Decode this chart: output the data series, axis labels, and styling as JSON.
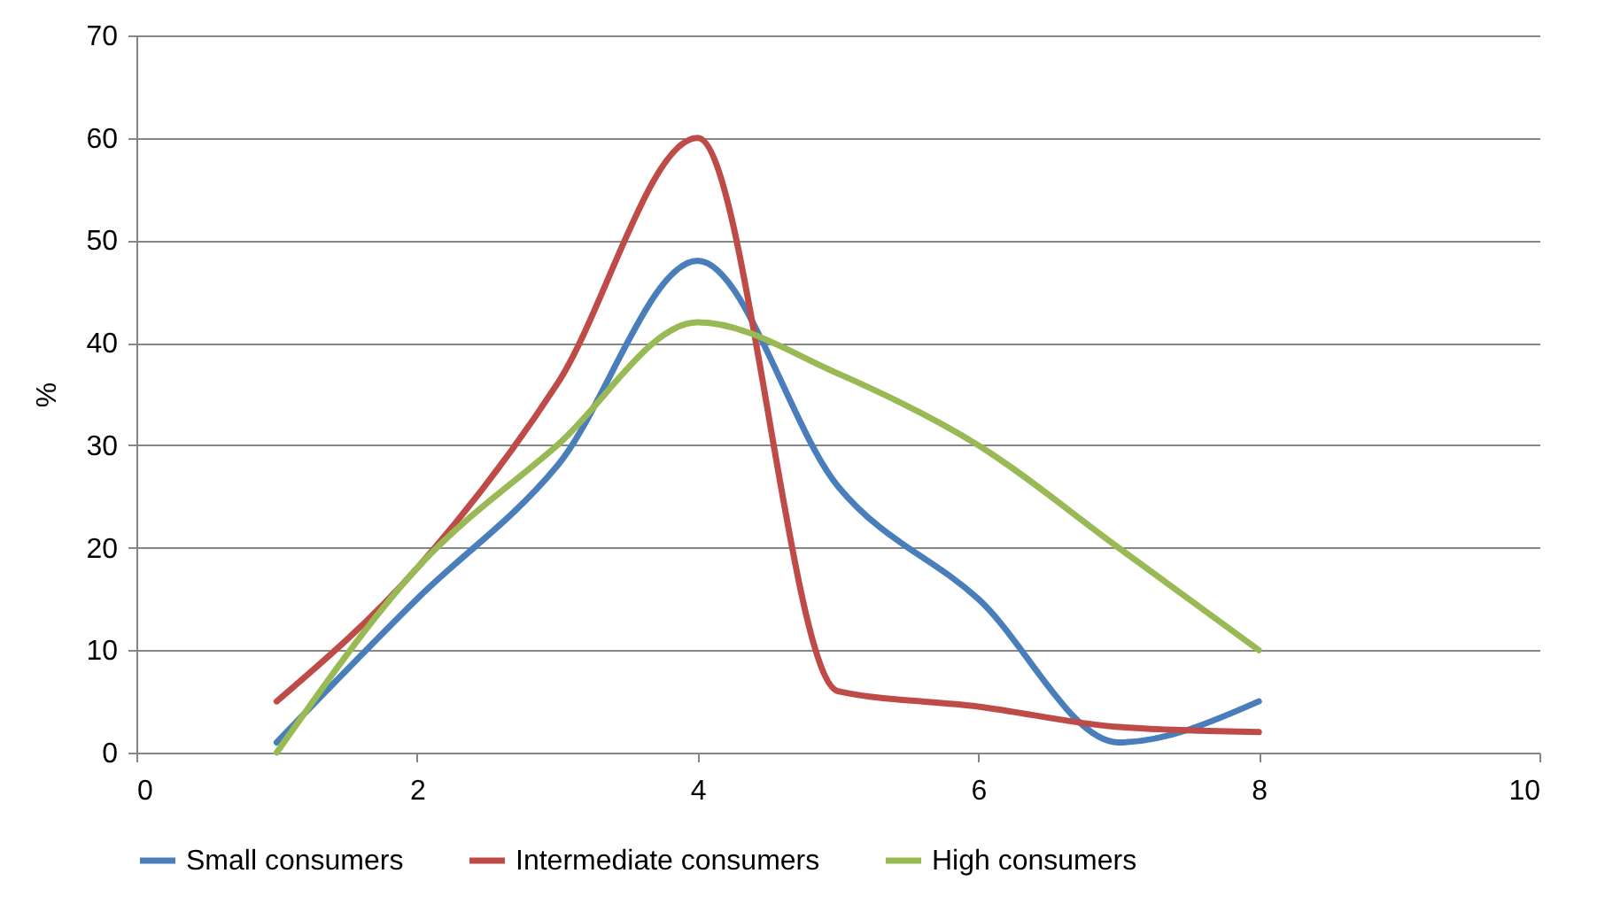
{
  "chart_data": {
    "type": "line",
    "ylabel": "%",
    "x": [
      1,
      2,
      3,
      4,
      5,
      6,
      7,
      8
    ],
    "series": [
      {
        "name": "Small consumers",
        "color": "#4a7ebb",
        "values": [
          1,
          15,
          28,
          48,
          26,
          15,
          1,
          5
        ]
      },
      {
        "name": "Intermediate consumers",
        "color": "#be4b48",
        "values": [
          5,
          18,
          36,
          60,
          6,
          4.5,
          2.5,
          2
        ]
      },
      {
        "name": "High consumers",
        "color": "#98b954",
        "values": [
          0,
          18,
          30,
          42,
          37,
          30,
          20,
          10
        ]
      }
    ],
    "xlim": [
      0,
      10
    ],
    "xticks": [
      0,
      2,
      4,
      6,
      8,
      10
    ],
    "ylim": [
      0,
      70
    ],
    "yticks": [
      0,
      10,
      20,
      30,
      40,
      50,
      60,
      70
    ],
    "grid": "y",
    "legend": "bottom",
    "marker": "none",
    "line_style": "solid"
  }
}
